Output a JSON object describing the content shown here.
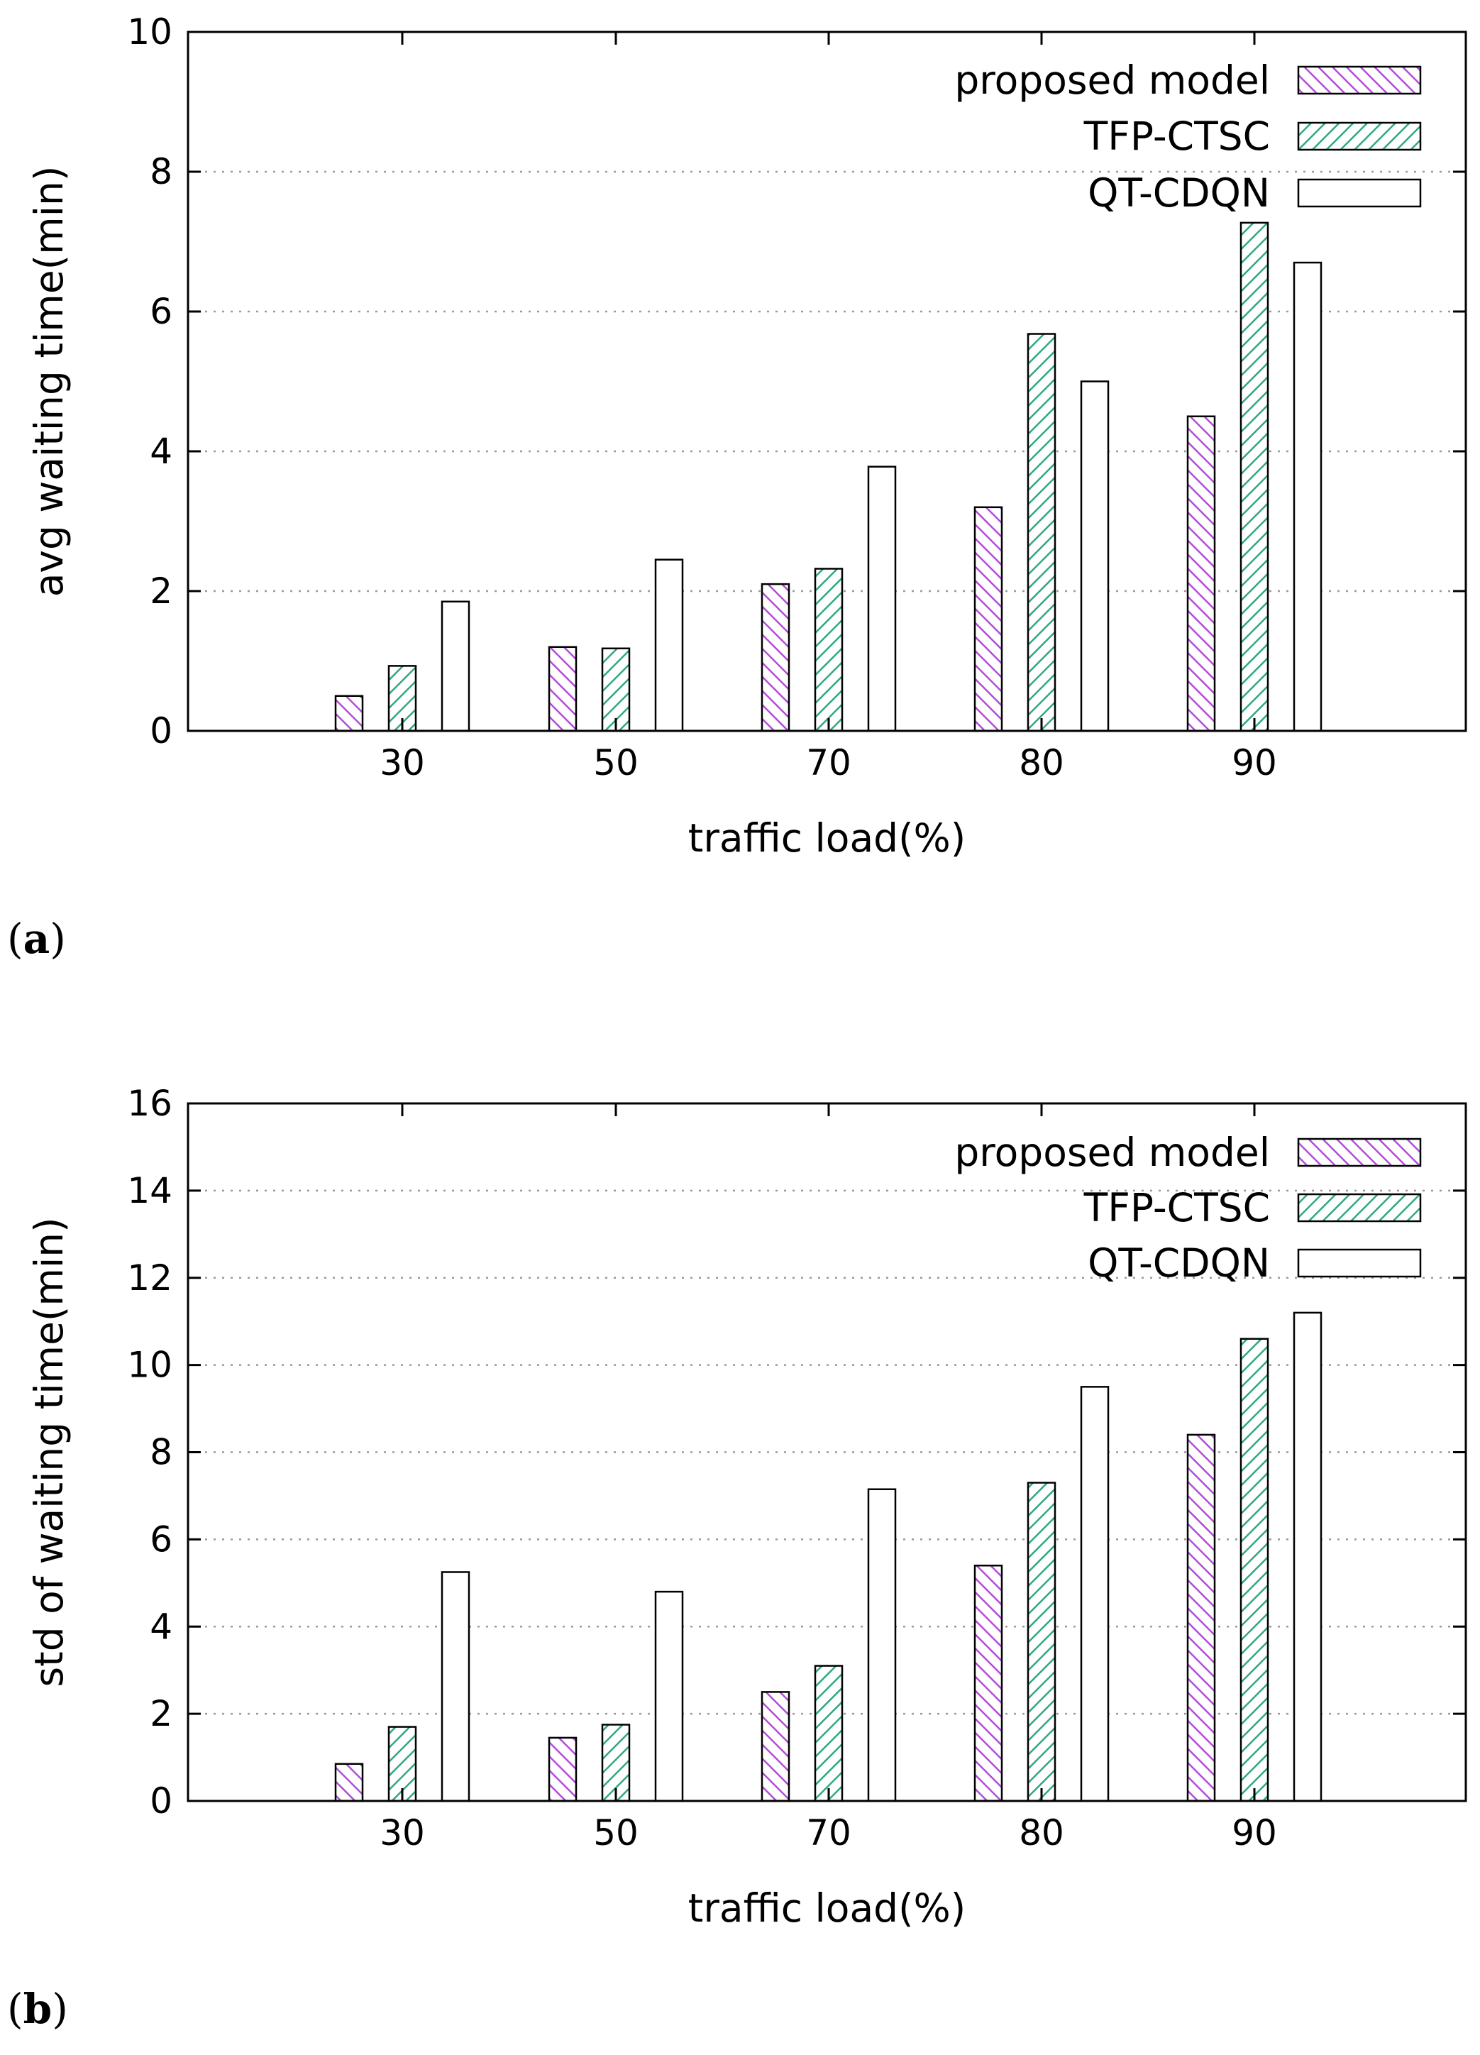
{
  "colors": {
    "proposed": "#b44cd9",
    "tfp": "#2fa883",
    "qt": "#000000",
    "grid": "#9a9a9a"
  },
  "chart_data": [
    {
      "type": "bar",
      "panel_label_open": "(",
      "panel_label_letter": "a",
      "panel_label_close": ")",
      "xlabel": "traffic load(%)",
      "ylabel": "avg waiting time(min)",
      "categories": [
        "30",
        "50",
        "70",
        "80",
        "90"
      ],
      "ylim": [
        0,
        10
      ],
      "yticks": [
        0,
        2,
        4,
        6,
        8,
        10
      ],
      "grid": true,
      "legend": "top-right",
      "series": [
        {
          "name": "proposed model",
          "style": "hatch-purple",
          "values": [
            0.5,
            1.2,
            2.1,
            3.2,
            4.5
          ]
        },
        {
          "name": "TFP-CTSC",
          "style": "hatch-green",
          "values": [
            0.93,
            1.18,
            2.32,
            5.68,
            7.27
          ]
        },
        {
          "name": "QT-CDQN",
          "style": "outline",
          "values": [
            1.85,
            2.45,
            3.78,
            5.0,
            6.7
          ]
        }
      ]
    },
    {
      "type": "bar",
      "panel_label_open": "(",
      "panel_label_letter": "b",
      "panel_label_close": ")",
      "xlabel": "traffic load(%)",
      "ylabel": "std of waiting time(min)",
      "categories": [
        "30",
        "50",
        "70",
        "80",
        "90"
      ],
      "ylim": [
        0,
        16
      ],
      "yticks": [
        0,
        2,
        4,
        6,
        8,
        10,
        12,
        14,
        16
      ],
      "grid": true,
      "legend": "top-right",
      "series": [
        {
          "name": "proposed model",
          "style": "hatch-purple",
          "values": [
            0.85,
            1.45,
            2.5,
            5.4,
            8.4
          ]
        },
        {
          "name": "TFP-CTSC",
          "style": "hatch-green",
          "values": [
            1.7,
            1.75,
            3.1,
            7.3,
            10.6
          ]
        },
        {
          "name": "QT-CDQN",
          "style": "outline",
          "values": [
            5.25,
            4.8,
            7.15,
            9.5,
            11.2
          ]
        }
      ]
    }
  ]
}
